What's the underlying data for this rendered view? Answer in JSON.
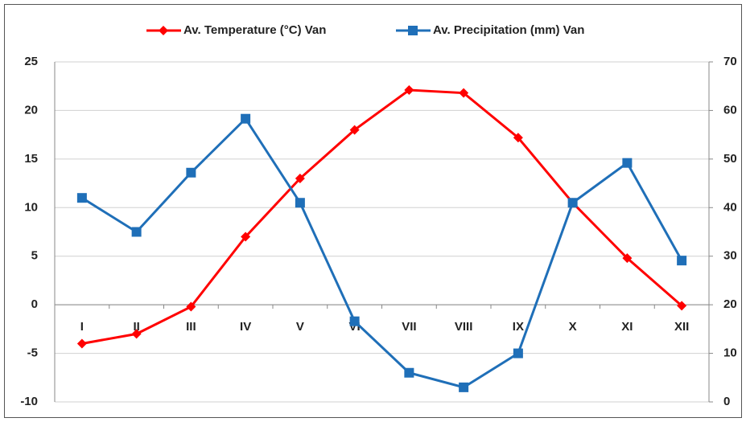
{
  "chart_data": {
    "type": "line",
    "categories": [
      "I",
      "II",
      "III",
      "IV",
      "V",
      "VI",
      "VII",
      "VIII",
      "IX",
      "X",
      "XI",
      "XII"
    ],
    "series": [
      {
        "name": "Av. Temperature (°C) Van",
        "color": "#ff0000",
        "marker": "diamond",
        "axis": "y",
        "values": [
          -4,
          -3,
          -0.2,
          7,
          13,
          18,
          22.1,
          21.8,
          17.2,
          10.5,
          4.8,
          -0.1
        ]
      },
      {
        "name": "Av. Precipitation (mm) Van",
        "color": "#1f6fb8",
        "marker": "square",
        "axis": "y2",
        "values": [
          42,
          35,
          47.2,
          58.3,
          41,
          16.6,
          6,
          3,
          10,
          41,
          49.2,
          29.1
        ]
      }
    ],
    "ylim": [
      -10,
      25
    ],
    "yticks": [
      -10,
      -5,
      0,
      5,
      10,
      15,
      20,
      25
    ],
    "y2lim": [
      0,
      70
    ],
    "y2ticks": [
      0,
      10,
      20,
      30,
      40,
      50,
      60,
      70
    ],
    "grid": true,
    "legend": "top"
  }
}
